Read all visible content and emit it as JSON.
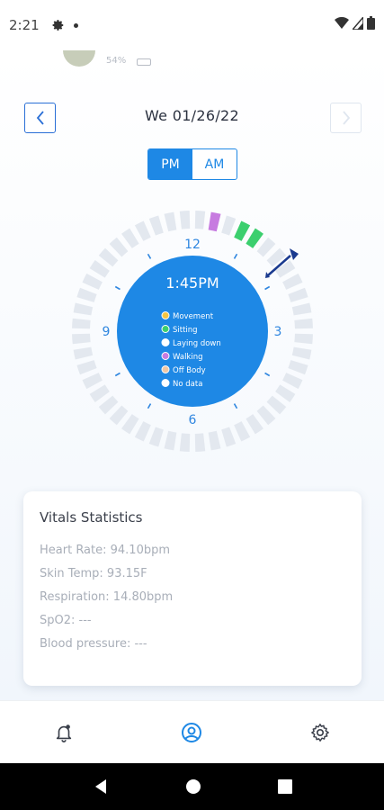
{
  "status_bar": {
    "time": "2:21"
  },
  "profile_peek": {
    "text": "54%"
  },
  "date_nav": {
    "date": "We 01/26/22"
  },
  "period_toggle": {
    "pm_label": "PM",
    "am_label": "AM",
    "selected": "PM"
  },
  "clock": {
    "time": "1:45PM",
    "hour_labels": {
      "top": "12",
      "right": "3",
      "bottom": "6",
      "left": "9"
    },
    "legend": [
      {
        "label": "Movement",
        "color": "#f5c542"
      },
      {
        "label": "Sitting",
        "color": "#3ccf6e"
      },
      {
        "label": "Laying down",
        "color": "#ffffff"
      },
      {
        "label": "Walking",
        "color": "#c77be0"
      },
      {
        "label": "Off Body",
        "color": "#f1c7a3"
      },
      {
        "label": "No data",
        "color": "#ffffff"
      }
    ],
    "colors": {
      "face": "#1e88e5",
      "segment_default": "#e3e8ef",
      "walking": "#c77be0",
      "sitting": "#3ccf6e",
      "indicator": "#1a3a8f"
    }
  },
  "vitals": {
    "title": "Vitals Statistics",
    "items": [
      "Heart Rate: 94.10bpm",
      "Skin Temp: 93.15F",
      "Respiration: 14.80bpm",
      "SpO2: ---",
      "Blood pressure: ---"
    ]
  },
  "bottom_nav": {
    "items": [
      {
        "icon": "notification-bell-icon"
      },
      {
        "icon": "profile-icon",
        "active": true
      },
      {
        "icon": "settings-gear-icon"
      }
    ]
  }
}
